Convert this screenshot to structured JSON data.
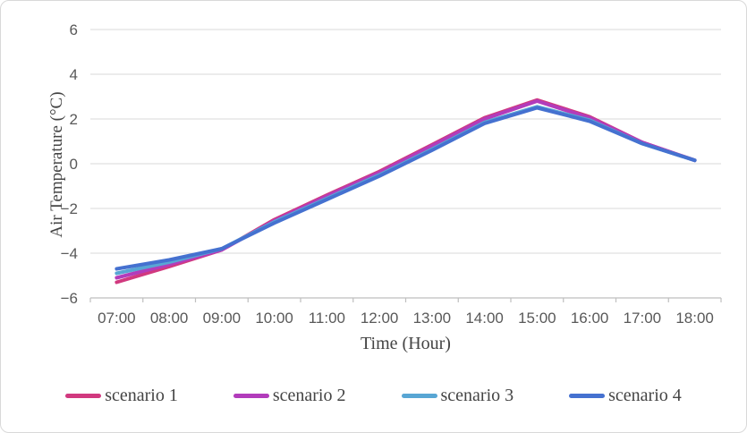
{
  "frame": {
    "background": "#ffffff",
    "border_color": "#d9d9d9",
    "gridline_color": "#d9d9d9",
    "axis_line_color": "#bfbfbf",
    "tick_label_color": "#595959",
    "title_color": "#444444"
  },
  "chart_data": {
    "type": "line",
    "title": "",
    "xlabel": "Time (Hour)",
    "ylabel": "Air Temperature (°C)",
    "x_categories": [
      "07:00",
      "08:00",
      "09:00",
      "10:00",
      "11:00",
      "12:00",
      "13:00",
      "14:00",
      "15:00",
      "16:00",
      "17:00",
      "18:00"
    ],
    "y_ticks": [
      6,
      4,
      2,
      0,
      -2,
      -4,
      -6
    ],
    "ylim": [
      -6,
      6
    ],
    "grid": "horizontal",
    "legend_position": "bottom",
    "series": [
      {
        "name": "scenario 1",
        "color": "#d1397f",
        "values": [
          -5.3,
          -4.6,
          -3.85,
          -2.5,
          -1.4,
          -0.35,
          0.85,
          2.05,
          2.85,
          2.1,
          0.95,
          0.15
        ]
      },
      {
        "name": "scenario 2",
        "color": "#b23cbb",
        "values": [
          -5.1,
          -4.5,
          -3.85,
          -2.55,
          -1.45,
          -0.4,
          0.8,
          2.0,
          2.8,
          2.05,
          0.95,
          0.15
        ]
      },
      {
        "name": "scenario 3",
        "color": "#58a6d4",
        "values": [
          -4.9,
          -4.4,
          -3.8,
          -2.6,
          -1.55,
          -0.5,
          0.65,
          1.85,
          2.55,
          1.95,
          0.9,
          0.15
        ]
      },
      {
        "name": "scenario 4",
        "color": "#4571d0",
        "values": [
          -4.7,
          -4.3,
          -3.8,
          -2.65,
          -1.6,
          -0.55,
          0.6,
          1.8,
          2.5,
          1.9,
          0.9,
          0.15
        ]
      }
    ]
  }
}
